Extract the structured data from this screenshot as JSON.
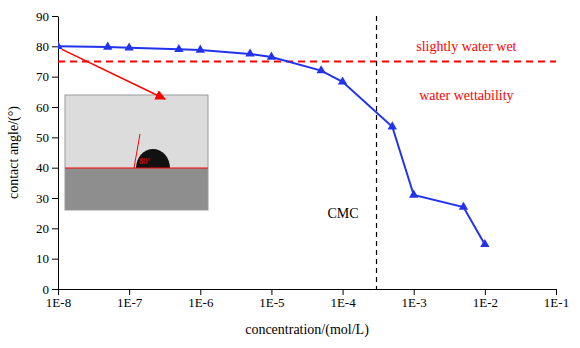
{
  "chart_data": {
    "type": "line",
    "x_label": "concentration/(mol/L)",
    "y_label": "contact angle/(°)",
    "x": [
      1e-08,
      5e-08,
      1e-07,
      5e-07,
      1e-06,
      5e-06,
      1e-05,
      5e-05,
      0.0001,
      0.0005,
      0.001,
      0.005,
      0.01
    ],
    "values": [
      80,
      79.8,
      79.5,
      79,
      78.8,
      77.5,
      76.5,
      72,
      68.3,
      53.5,
      31,
      27,
      14.7
    ],
    "color": "#2233ee",
    "marker": "triangle",
    "line_style": "solid",
    "log": "x",
    "grid": false,
    "xlim": [
      1e-08,
      0.1
    ],
    "ylim": [
      0,
      90
    ],
    "xticks": [
      {
        "value": 1e-08,
        "label": "1E-8"
      },
      {
        "value": 1e-07,
        "label": "1E-7"
      },
      {
        "value": 1e-06,
        "label": "1E-6"
      },
      {
        "value": 1e-05,
        "label": "1E-5"
      },
      {
        "value": 0.0001,
        "label": "1E-4"
      },
      {
        "value": 0.001,
        "label": "1E-3"
      },
      {
        "value": 0.01,
        "label": "1E-2"
      },
      {
        "value": 0.1,
        "label": "1E-1"
      }
    ],
    "yticks": [
      0,
      10,
      20,
      30,
      40,
      50,
      60,
      70,
      80,
      90
    ],
    "threshold": {
      "value": 75,
      "label_above": "slightly water wet",
      "label_below": "water wettability"
    },
    "cmc": {
      "value": 0.0003,
      "label": "CMC"
    },
    "inset_label": "80°"
  }
}
